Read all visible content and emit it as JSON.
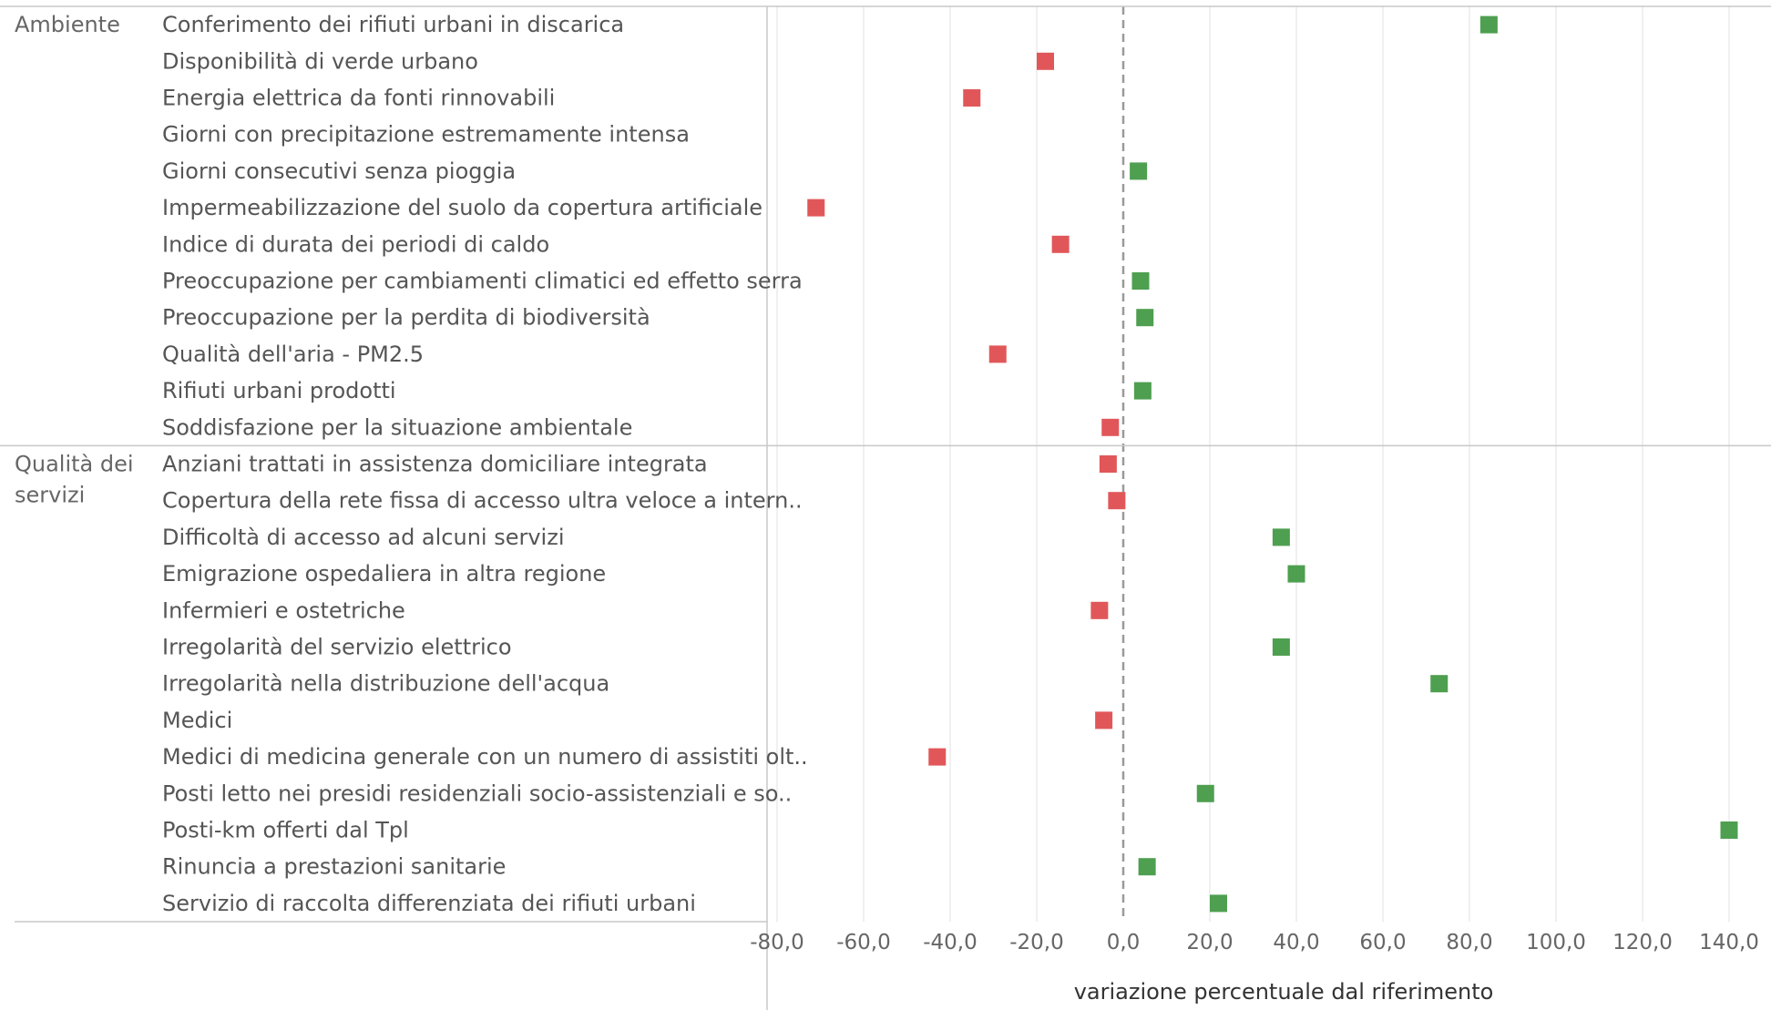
{
  "chart_data": {
    "type": "scatter",
    "xlabel": "variazione percentuale dal riferimento",
    "xlim": [
      -82,
      148
    ],
    "xticks": [
      "-80,0",
      "-60,0",
      "-40,0",
      "-20,0",
      "0,0",
      "20,0",
      "40,0",
      "60,0",
      "80,0",
      "100,0",
      "120,0",
      "140,0"
    ],
    "xtick_values": [
      -80,
      -60,
      -40,
      -20,
      0,
      20,
      40,
      60,
      80,
      100,
      120,
      140
    ],
    "reference_line": 0,
    "colors": {
      "positive": "#4e9f50",
      "negative": "#e15759",
      "grid": "#ececec",
      "border": "#c8c8c8",
      "reference": "#999999"
    },
    "groups": [
      {
        "label_lines": [
          "Ambiente"
        ],
        "rows": [
          {
            "label": "Conferimento dei rifiuti urbani in discarica",
            "value": 84.5
          },
          {
            "label": "Disponibilità di verde urbano",
            "value": -18.0
          },
          {
            "label": "Energia elettrica da fonti rinnovabili",
            "value": -35.0
          },
          {
            "label": "Giorni con precipitazione estremamente intensa",
            "value": null
          },
          {
            "label": "Giorni consecutivi senza pioggia",
            "value": 3.5
          },
          {
            "label": "Impermeabilizzazione del suolo da copertura artificiale",
            "value": -71.0
          },
          {
            "label": "Indice di durata dei periodi di caldo",
            "value": -14.5
          },
          {
            "label": "Preoccupazione per cambiamenti climatici ed effetto serra",
            "value": 4.0
          },
          {
            "label": "Preoccupazione per la perdita di biodiversità",
            "value": 5.0
          },
          {
            "label": "Qualità dell'aria - PM2.5",
            "value": -29.0
          },
          {
            "label": "Rifiuti urbani prodotti",
            "value": 4.5
          },
          {
            "label": "Soddisfazione per la situazione ambientale",
            "value": -3.0
          }
        ]
      },
      {
        "label_lines": [
          "Qualità dei",
          "servizi"
        ],
        "rows": [
          {
            "label": "Anziani trattati in assistenza domiciliare integrata",
            "value": -3.5
          },
          {
            "label": "Copertura della rete fissa di accesso ultra veloce a intern..",
            "value": -1.5
          },
          {
            "label": "Difficoltà di accesso ad alcuni servizi",
            "value": 36.5
          },
          {
            "label": "Emigrazione ospedaliera in altra regione",
            "value": 40.0
          },
          {
            "label": "Infermieri e ostetriche",
            "value": -5.5
          },
          {
            "label": "Irregolarità del servizio elettrico",
            "value": 36.5
          },
          {
            "label": "Irregolarità nella distribuzione dell'acqua",
            "value": 73.0
          },
          {
            "label": "Medici",
            "value": -4.5
          },
          {
            "label": "Medici di medicina generale con un numero di assistiti olt..",
            "value": -43.0
          },
          {
            "label": "Posti letto nei presidi residenziali socio-assistenziali e so..",
            "value": 19.0
          },
          {
            "label": "Posti-km offerti dal Tpl",
            "value": 140.0
          },
          {
            "label": "Rinuncia a prestazioni sanitarie",
            "value": 5.5
          },
          {
            "label": "Servizio di raccolta differenziata dei rifiuti urbani",
            "value": 22.0
          }
        ]
      }
    ]
  }
}
